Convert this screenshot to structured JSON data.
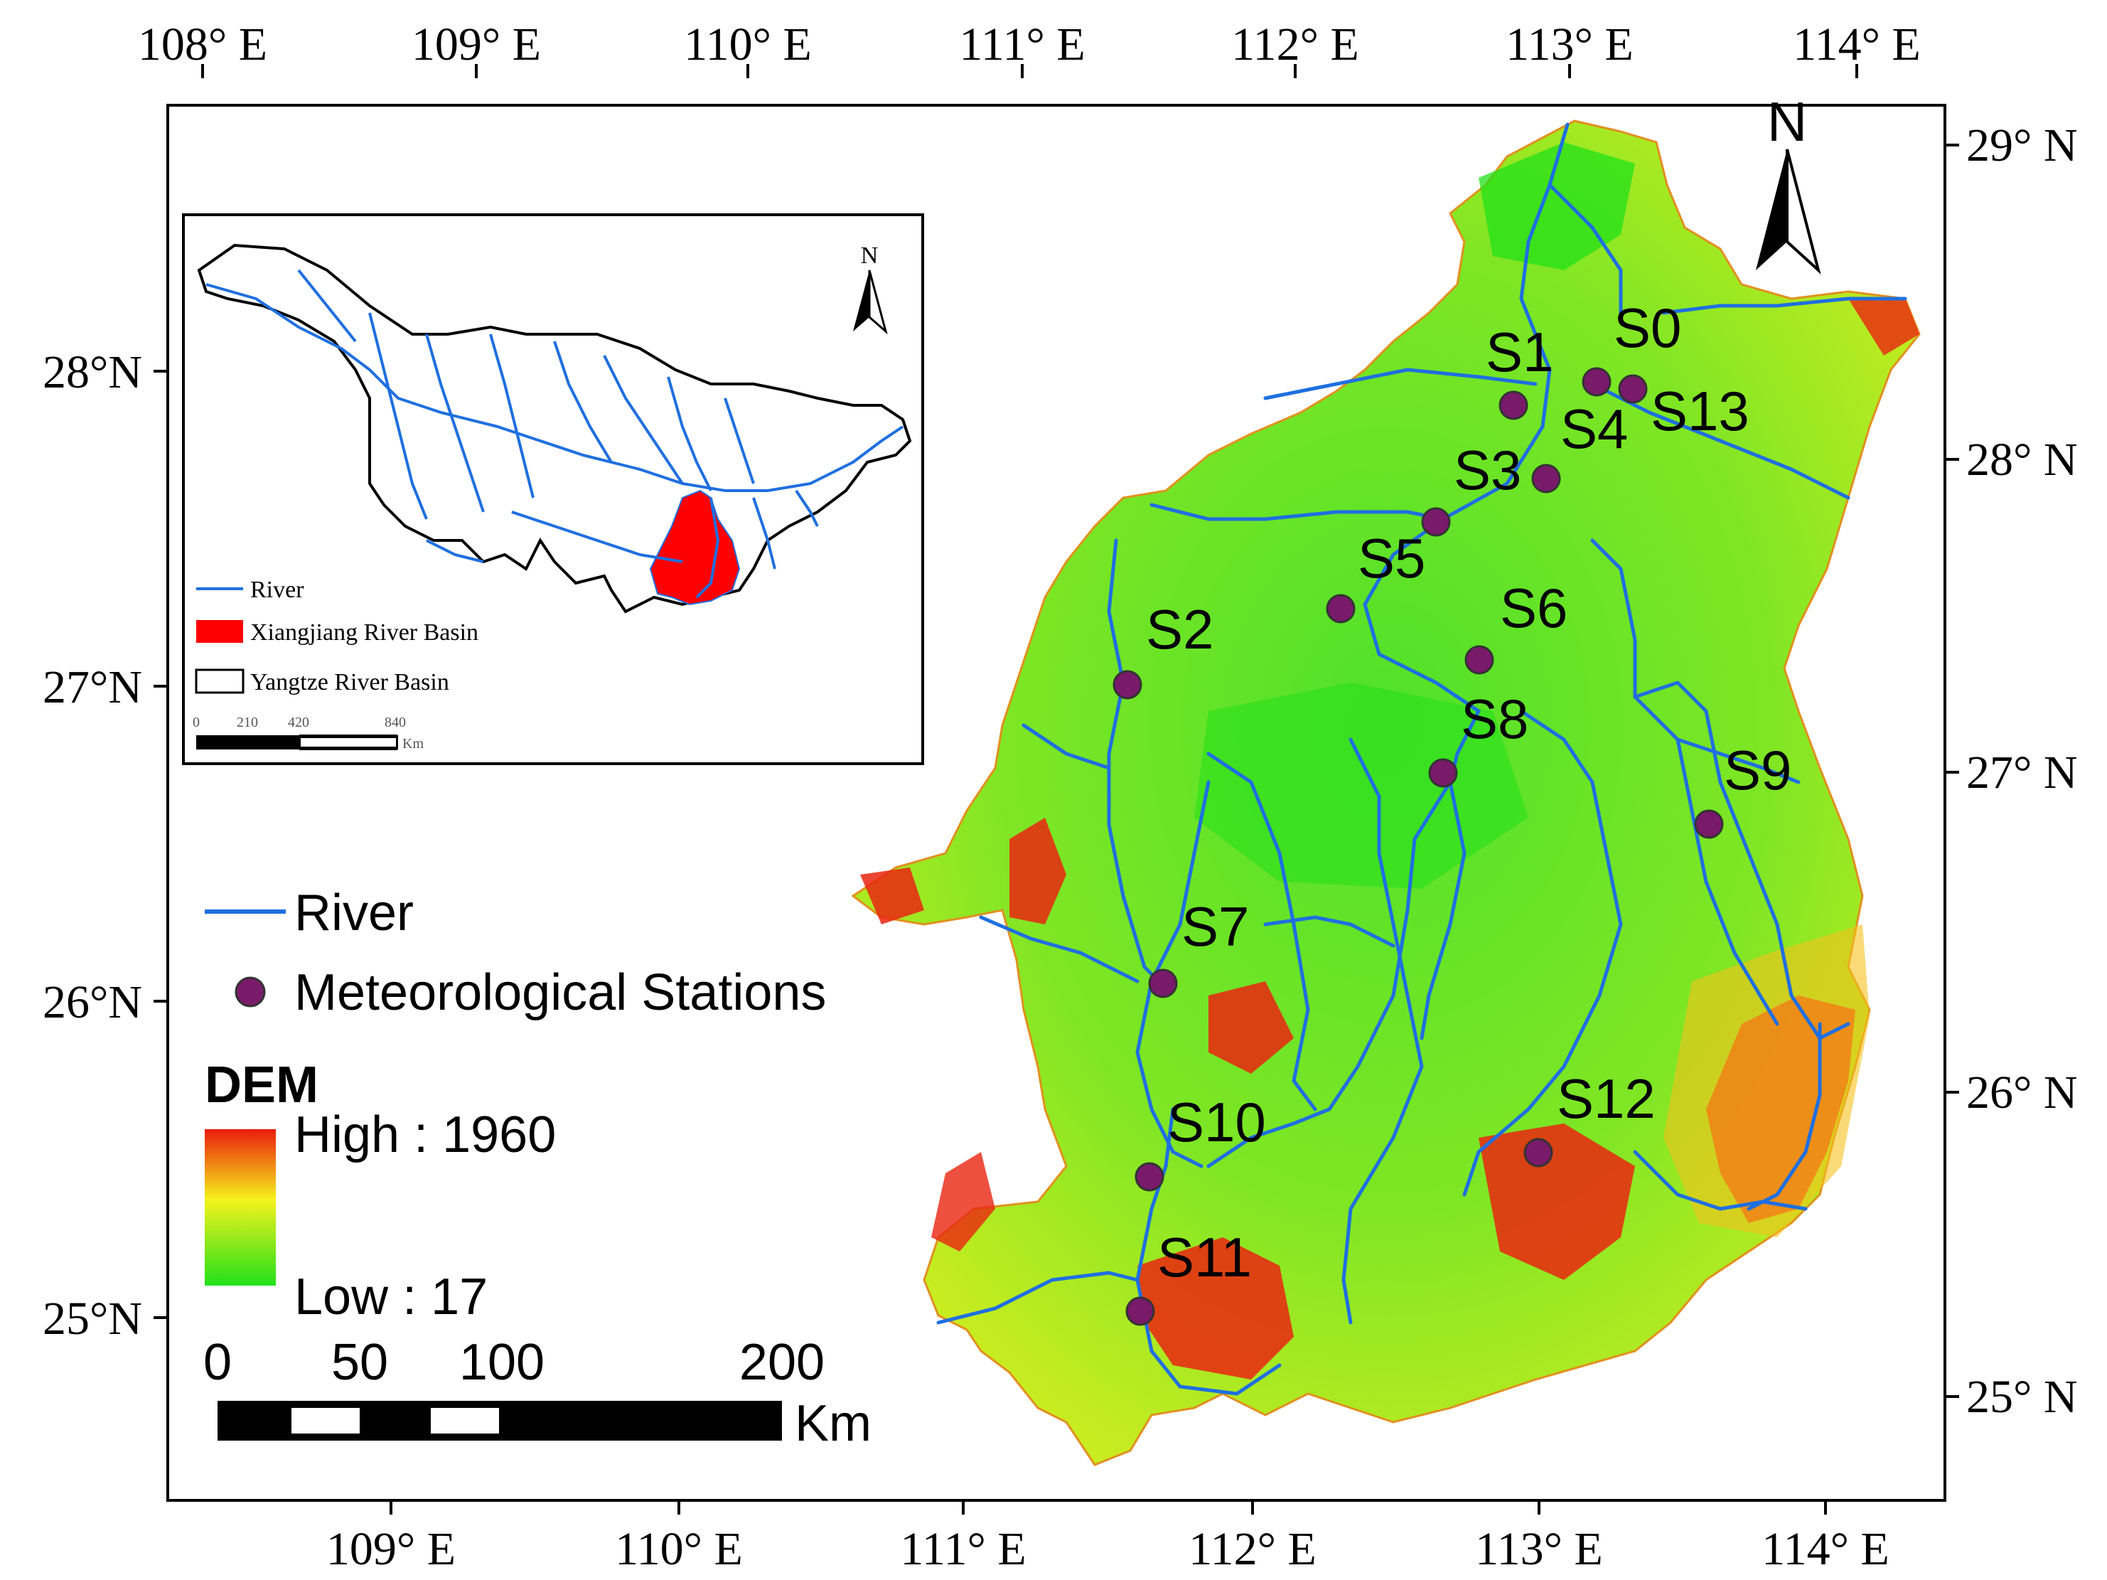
{
  "map": {
    "top_lon_ticks": [
      "108° E",
      "109° E",
      "110° E",
      "111° E",
      "112° E",
      "113° E",
      "114° E"
    ],
    "bottom_lon_ticks": [
      "109° E",
      "110° E",
      "111° E",
      "112° E",
      "113° E",
      "114° E"
    ],
    "left_lat_ticks": [
      "28°N",
      "27°N",
      "26°N",
      "25°N"
    ],
    "right_lat_ticks": [
      "29° N",
      "28° N",
      "27° N",
      "26° N",
      "25° N"
    ],
    "north_label": "N",
    "stations": [
      "S0",
      "S1",
      "S2",
      "S3",
      "S4",
      "S5",
      "S6",
      "S7",
      "S8",
      "S9",
      "S10",
      "S11",
      "S12",
      "S13"
    ]
  },
  "legend": {
    "river": "River",
    "stations": "Meteorological Stations",
    "dem_title": "DEM",
    "high": "High : 1960",
    "low": "Low : 17",
    "colors": {
      "river": "#1f6fe0",
      "station": "#7a1a6a",
      "dem_low": "#22e01a",
      "dem_mid": "#f6f21c",
      "dem_high": "#ea1c0c"
    }
  },
  "scalebar": {
    "ticks": [
      "0",
      "50",
      "100",
      "200"
    ],
    "unit": "Km"
  },
  "inset": {
    "north_label": "N",
    "river": "River",
    "xiangjiang": "Xiangjiang River Basin",
    "yangtze": "Yangtze River Basin",
    "scale_ticks": [
      "0",
      "210",
      "420",
      "840"
    ],
    "scale_unit": "Km"
  }
}
